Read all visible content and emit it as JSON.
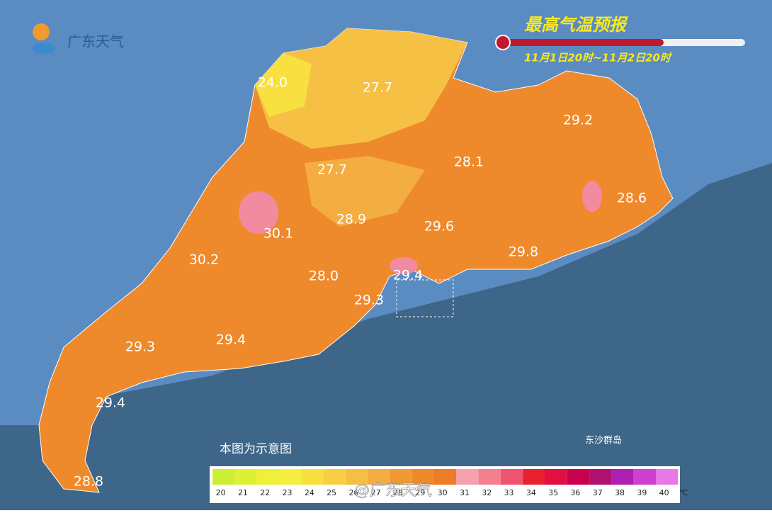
{
  "logo": "广东天气",
  "title": "最高气温预报",
  "subtitle": "11月1日20时~11月2日20时",
  "labels": [
    "24.0",
    "27.7",
    "29.2",
    "27.7",
    "28.1",
    "28.6",
    "28.9",
    "29.6",
    "30.1",
    "30.2",
    "29.8",
    "29.4",
    "28.0",
    "29.3",
    "29.3",
    "29.4",
    "29.4",
    "28.8"
  ],
  "note": "本图为示意图",
  "islands": "东沙群岛",
  "watermark": "@广东天气",
  "legend": {
    "ticks": [
      20,
      21,
      22,
      23,
      24,
      25,
      26,
      27,
      28,
      29,
      30,
      31,
      32,
      33,
      34,
      35,
      36,
      37,
      38,
      39,
      40
    ],
    "unit": "℃",
    "colors": [
      "#ccee33",
      "#ddf033",
      "#eef03a",
      "#f5ee40",
      "#f8e040",
      "#f6cf45",
      "#f5bf45",
      "#f3ad40",
      "#f09a35",
      "#ee8a2a",
      "#ec7c25",
      "#f7a0b0",
      "#f4808e",
      "#ee5570",
      "#e82030",
      "#e01040",
      "#c80050",
      "#b01070",
      "#b020b0",
      "#d040d0",
      "#e878e8"
    ]
  }
}
